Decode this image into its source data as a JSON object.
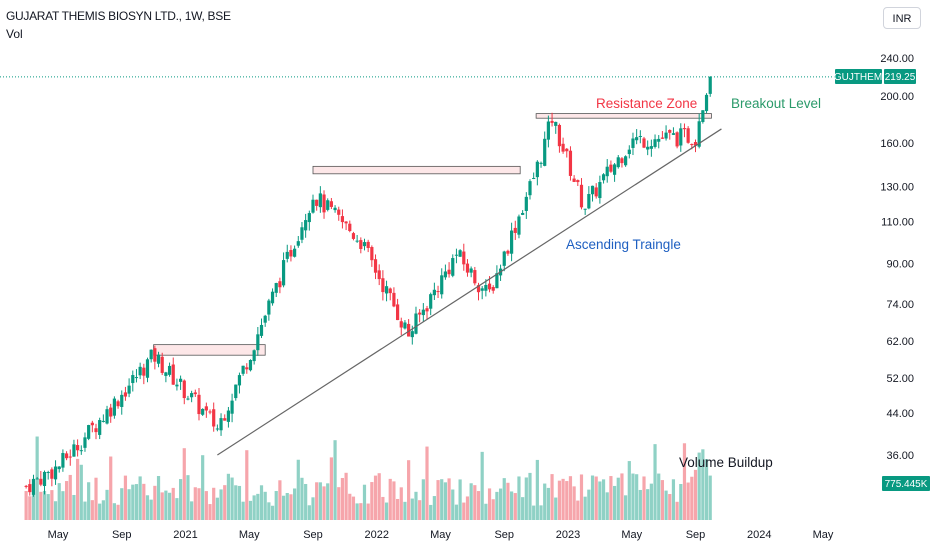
{
  "header": {
    "title": "GUJARAT THEMIS BIOSYN LTD., 1W, BSE",
    "indicator": "Vol",
    "currency_button": "INR"
  },
  "price_tag": {
    "symbol": "GUJTHEM",
    "price": "219.25",
    "color": "#089981"
  },
  "volume_tag": {
    "value": "775.445K",
    "color": "#089981"
  },
  "colors": {
    "up": "#089981",
    "down": "#f23645",
    "vol_up": "#8fd1c5",
    "vol_down": "#f6a5ab",
    "trendline": "#666666"
  },
  "chart_data": {
    "type": "candlestick",
    "timeframe": "1W",
    "y_scale": "log",
    "y_ticks": [
      "240.00",
      "200.00",
      "160.00",
      "130.00",
      "110.00",
      "90.00",
      "74.00",
      "62.00",
      "52.00",
      "44.00",
      "36.00"
    ],
    "x_ticks": [
      "May",
      "Sep",
      "2021",
      "May",
      "Sep",
      "2022",
      "May",
      "Sep",
      "2023",
      "May",
      "Sep",
      "2024",
      "May"
    ],
    "last_price": 219.25,
    "last_volume": "775.445K",
    "annotations": {
      "resistance": "Resistance Zone",
      "breakout": "Breakout Level",
      "pattern": "Ascending Traingle",
      "volume": "Volume Buildup"
    },
    "price_path": [
      {
        "date": "2020-03",
        "close": 31
      },
      {
        "date": "2020-05",
        "close": 34
      },
      {
        "date": "2020-08",
        "close": 44
      },
      {
        "date": "2020-11",
        "close": 58
      },
      {
        "date": "2021-03",
        "close": 41
      },
      {
        "date": "2021-05",
        "close": 58
      },
      {
        "date": "2021-09",
        "close": 125
      },
      {
        "date": "2021-12",
        "close": 100
      },
      {
        "date": "2022-03",
        "close": 64
      },
      {
        "date": "2022-06",
        "close": 94
      },
      {
        "date": "2022-08",
        "close": 77
      },
      {
        "date": "2022-11",
        "close": 140
      },
      {
        "date": "2022-12",
        "close": 180
      },
      {
        "date": "2023-02",
        "close": 118
      },
      {
        "date": "2023-05",
        "close": 162
      },
      {
        "date": "2023-09",
        "close": 165
      },
      {
        "date": "2023-10",
        "close": 219.25
      }
    ],
    "resistance_zones": [
      {
        "from": "2020-11",
        "to": "2021-06",
        "low": 58,
        "high": 61
      },
      {
        "from": "2021-09",
        "to": "2022-10",
        "low": 138,
        "high": 143
      },
      {
        "from": "2022-11",
        "to": "2023-10",
        "low": 180,
        "high": 184
      }
    ],
    "trendline": [
      {
        "date": "2021-03",
        "price": 36
      },
      {
        "date": "2023-10",
        "price": 171
      }
    ]
  }
}
